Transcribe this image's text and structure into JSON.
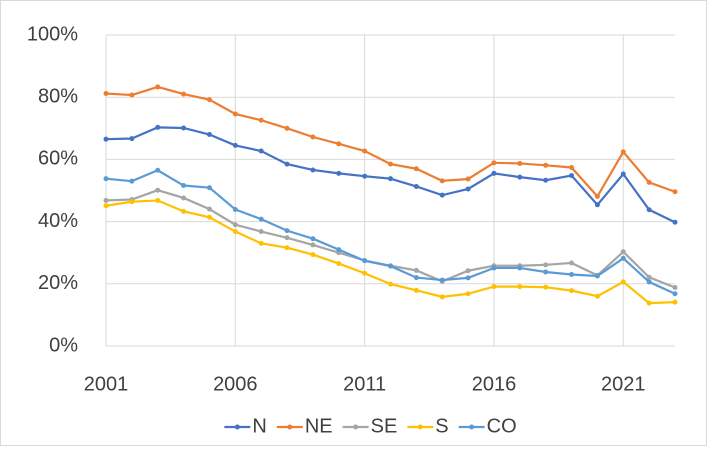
{
  "chart_data": {
    "type": "line",
    "x": [
      2001,
      2002,
      2003,
      2004,
      2005,
      2006,
      2007,
      2008,
      2009,
      2010,
      2011,
      2012,
      2013,
      2014,
      2015,
      2016,
      2017,
      2018,
      2019,
      2020,
      2021,
      2022,
      2023
    ],
    "xlim": [
      2001,
      2023
    ],
    "xticks": [
      2001,
      2006,
      2011,
      2016,
      2021
    ],
    "ylim": [
      0,
      100
    ],
    "yticks": [
      {
        "value": 0,
        "label": "0%"
      },
      {
        "value": 20,
        "label": "20%"
      },
      {
        "value": 40,
        "label": "40%"
      },
      {
        "value": 60,
        "label": "60%"
      },
      {
        "value": 80,
        "label": "80%"
      },
      {
        "value": 100,
        "label": "100%"
      }
    ],
    "grid": true,
    "legend": "bottom",
    "series": [
      {
        "name": "N",
        "color": "#4472c4",
        "values": [
          66.5,
          66.7,
          70.3,
          70.1,
          68,
          64.5,
          62.7,
          58.5,
          56.6,
          55.5,
          54.6,
          53.8,
          51.3,
          48.5,
          50.5,
          55.5,
          54.3,
          53.3,
          54.8,
          45.4,
          55.3,
          43.8,
          39.8
        ]
      },
      {
        "name": "NE",
        "color": "#ed7d31",
        "values": [
          81.2,
          80.7,
          83.3,
          81,
          79.2,
          74.6,
          72.6,
          70,
          67.2,
          65,
          62.7,
          58.5,
          57,
          53.1,
          53.7,
          58.9,
          58.7,
          58.1,
          57.4,
          48.1,
          62.4,
          52.6,
          49.6
        ]
      },
      {
        "name": "SE",
        "color": "#a5a5a5",
        "values": [
          46.8,
          47.1,
          50.1,
          47.6,
          44,
          39,
          36.8,
          34.8,
          32.5,
          30,
          27.5,
          25.8,
          24.3,
          20.8,
          24.2,
          25.8,
          25.8,
          26.1,
          26.7,
          22.7,
          30.3,
          22.1,
          18.8
        ]
      },
      {
        "name": "S",
        "color": "#ffc000",
        "values": [
          45.1,
          46.4,
          46.8,
          43.3,
          41.4,
          36.8,
          33,
          31.6,
          29.4,
          26.5,
          23.4,
          19.9,
          17.9,
          15.8,
          16.8,
          19.1,
          19.1,
          18.9,
          17.8,
          16,
          20.6,
          13.8,
          14.1
        ]
      },
      {
        "name": "CO",
        "color": "#5b9bd5",
        "values": [
          53.8,
          53,
          56.5,
          51.6,
          50.9,
          43.9,
          40.8,
          37.1,
          34.5,
          31,
          27.4,
          25.7,
          22,
          21.2,
          21.9,
          25.1,
          25.1,
          23.8,
          23,
          22.5,
          28.2,
          20.6,
          16.8
        ]
      }
    ]
  }
}
